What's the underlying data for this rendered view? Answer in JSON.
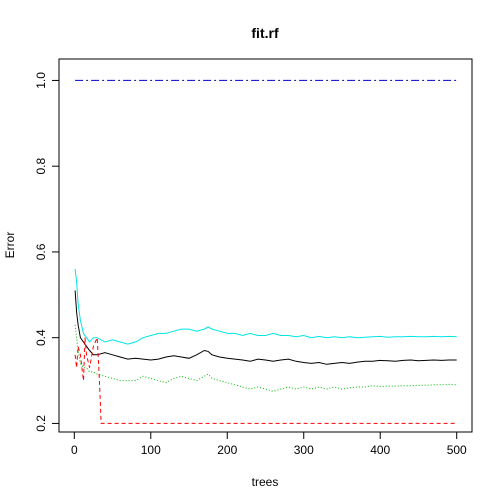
{
  "chart_data": {
    "type": "line",
    "title": "fit.rf",
    "xlabel": "trees",
    "ylabel": "Error",
    "xlim": [
      -20,
      520
    ],
    "ylim": [
      0.18,
      1.05
    ],
    "grid": false,
    "legend": "none",
    "x_ticks": [
      0,
      100,
      200,
      300,
      400,
      500
    ],
    "y_ticks": [
      0.2,
      0.4,
      0.6,
      0.8,
      1.0
    ],
    "x_tick_labels": [
      "0",
      "100",
      "200",
      "300",
      "400",
      "500"
    ],
    "y_tick_labels": [
      "0.2",
      "0.4",
      "0.6",
      "0.8",
      "1.0"
    ],
    "series": [
      {
        "color": "#000000",
        "dash": "solid",
        "x": [
          1,
          3,
          5,
          8,
          12,
          16,
          20,
          25,
          30,
          40,
          50,
          60,
          70,
          80,
          90,
          100,
          110,
          120,
          130,
          140,
          150,
          160,
          170,
          175,
          180,
          190,
          200,
          210,
          220,
          230,
          240,
          250,
          260,
          270,
          280,
          290,
          300,
          310,
          320,
          330,
          340,
          350,
          360,
          370,
          380,
          390,
          400,
          410,
          420,
          430,
          440,
          450,
          460,
          470,
          480,
          490,
          500
        ],
        "y": [
          0.51,
          0.46,
          0.43,
          0.4,
          0.39,
          0.38,
          0.37,
          0.36,
          0.36,
          0.365,
          0.36,
          0.355,
          0.35,
          0.352,
          0.35,
          0.348,
          0.35,
          0.355,
          0.358,
          0.355,
          0.352,
          0.36,
          0.37,
          0.368,
          0.36,
          0.355,
          0.352,
          0.35,
          0.348,
          0.345,
          0.35,
          0.348,
          0.345,
          0.348,
          0.35,
          0.345,
          0.342,
          0.34,
          0.342,
          0.338,
          0.34,
          0.342,
          0.34,
          0.343,
          0.345,
          0.345,
          0.347,
          0.346,
          0.345,
          0.347,
          0.348,
          0.346,
          0.347,
          0.348,
          0.347,
          0.348,
          0.348
        ]
      },
      {
        "color": "#ff0000",
        "dash": "4,3",
        "x": [
          1,
          3,
          5,
          8,
          10,
          12,
          14,
          16,
          20,
          25,
          30,
          32,
          34,
          35,
          40,
          50,
          100,
          200,
          300,
          400,
          500
        ],
        "y": [
          0.36,
          0.33,
          0.38,
          0.36,
          0.33,
          0.3,
          0.4,
          0.36,
          0.33,
          0.38,
          0.4,
          0.33,
          0.25,
          0.2,
          0.2,
          0.2,
          0.2,
          0.2,
          0.2,
          0.2,
          0.2
        ]
      },
      {
        "color": "#00bb00",
        "dash": "1,2",
        "x": [
          1,
          3,
          5,
          8,
          12,
          16,
          20,
          25,
          30,
          40,
          50,
          60,
          70,
          80,
          90,
          100,
          110,
          120,
          130,
          140,
          150,
          160,
          170,
          175,
          180,
          190,
          200,
          210,
          220,
          230,
          240,
          250,
          260,
          270,
          280,
          290,
          300,
          310,
          320,
          330,
          340,
          350,
          360,
          370,
          380,
          390,
          400,
          410,
          420,
          430,
          440,
          450,
          460,
          470,
          480,
          490,
          500
        ],
        "y": [
          0.43,
          0.4,
          0.37,
          0.34,
          0.33,
          0.33,
          0.32,
          0.32,
          0.315,
          0.31,
          0.305,
          0.3,
          0.3,
          0.3,
          0.31,
          0.305,
          0.3,
          0.295,
          0.305,
          0.31,
          0.305,
          0.3,
          0.31,
          0.315,
          0.305,
          0.3,
          0.295,
          0.29,
          0.285,
          0.28,
          0.285,
          0.28,
          0.275,
          0.28,
          0.285,
          0.28,
          0.285,
          0.28,
          0.285,
          0.28,
          0.285,
          0.28,
          0.283,
          0.285,
          0.285,
          0.288,
          0.286,
          0.287,
          0.287,
          0.288,
          0.288,
          0.289,
          0.289,
          0.29,
          0.29,
          0.291,
          0.29
        ]
      },
      {
        "color": "#00e5e5",
        "dash": "solid",
        "x": [
          1,
          3,
          5,
          8,
          12,
          16,
          20,
          25,
          30,
          40,
          50,
          60,
          70,
          80,
          90,
          100,
          110,
          120,
          130,
          140,
          150,
          160,
          170,
          175,
          180,
          190,
          200,
          210,
          220,
          230,
          240,
          250,
          260,
          270,
          280,
          290,
          300,
          310,
          320,
          330,
          340,
          350,
          360,
          370,
          380,
          390,
          400,
          410,
          420,
          430,
          440,
          450,
          460,
          470,
          480,
          490,
          500
        ],
        "y": [
          0.56,
          0.53,
          0.48,
          0.44,
          0.41,
          0.4,
          0.39,
          0.4,
          0.4,
          0.39,
          0.395,
          0.39,
          0.385,
          0.39,
          0.4,
          0.405,
          0.41,
          0.41,
          0.415,
          0.42,
          0.42,
          0.415,
          0.42,
          0.425,
          0.42,
          0.415,
          0.41,
          0.41,
          0.405,
          0.41,
          0.405,
          0.405,
          0.41,
          0.405,
          0.405,
          0.402,
          0.405,
          0.4,
          0.403,
          0.4,
          0.402,
          0.4,
          0.402,
          0.4,
          0.401,
          0.402,
          0.403,
          0.401,
          0.402,
          0.402,
          0.403,
          0.402,
          0.402,
          0.403,
          0.402,
          0.403,
          0.402
        ]
      },
      {
        "color": "#0000cc",
        "dash": "8,3,2,3",
        "x": [
          1,
          500
        ],
        "y": [
          1.0,
          1.0
        ]
      }
    ]
  }
}
